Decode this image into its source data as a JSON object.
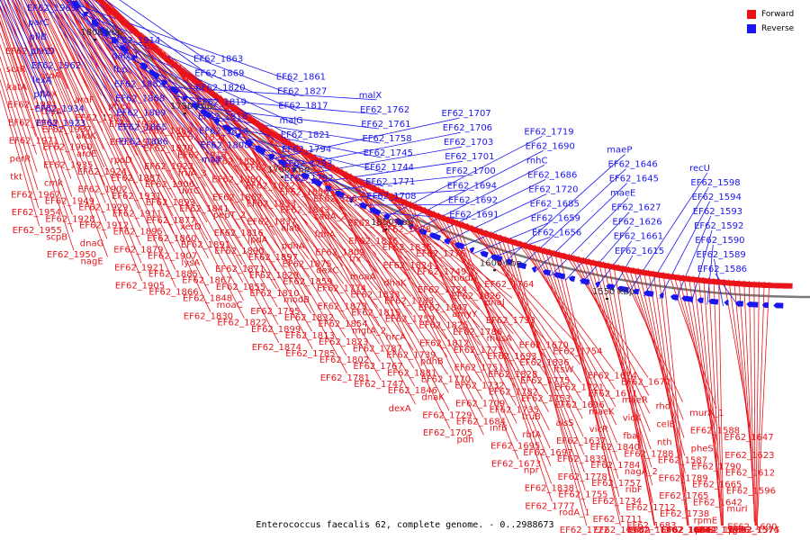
{
  "caption": "Enterococcus faecalis 62, complete genome. - 0..2988673",
  "legend": [
    {
      "label": "Forward",
      "color": "#e8141a"
    },
    {
      "label": "Reverse",
      "color": "#1a16f0"
    }
  ],
  "colors": {
    "forward": "#e8141a",
    "reverse": "#1a16f0",
    "backbone": "#7a7a7a"
  },
  "ticks": [
    "1950 kbp",
    "1900 kbp",
    "1850 kbp",
    "1800 kbp",
    "1750 kbp",
    "1700 kbp",
    "1650 kbp",
    "1600 kbp",
    "1550 kbp"
  ],
  "reverse_labels": [
    "EF62_1969",
    "parC",
    "pflB",
    "phnD",
    "EF62_1962",
    "lexA",
    "pflA",
    "EF62_1934",
    "EF62_1923",
    "EF62_1914",
    "gap_1",
    "fbp",
    "EF62_1882",
    "EF62_1868",
    "EF62_1889",
    "EF62_1865",
    "EF62_1886",
    "EF62_1863",
    "EF62_1869",
    "EF62_1820",
    "EF62_1819",
    "EF62_1818",
    "EF62_1814",
    "EF62_1808",
    "malF",
    "EF62_1861",
    "EF62_1827",
    "EF62_1817",
    "malG",
    "EF62_1821",
    "EF62_1794",
    "EF62_1793",
    "EF62_1792",
    "malX",
    "EF62_1762",
    "EF62_1761",
    "EF62_1758",
    "EF62_1745",
    "EF62_1744",
    "EF62_1771",
    "EF62_1708",
    "EF62_1707",
    "EF62_1706",
    "EF62_1703",
    "EF62_1701",
    "EF62_1700",
    "EF62_1694",
    "EF62_1692",
    "EF62_1691",
    "EF62_1719",
    "EF62_1690",
    "rnhC",
    "EF62_1686",
    "EF62_1720",
    "EF62_1685",
    "EF62_1659",
    "EF62_1656",
    "maeP",
    "EF62_1646",
    "EF62_1645",
    "maeE",
    "EF62_1627",
    "EF62_1626",
    "EF62_1661",
    "EF62_1615",
    "recU",
    "EF62_1598",
    "EF62_1594",
    "EF62_1593",
    "EF62_1592",
    "EF62_1590",
    "EF62_1589",
    "EF62_1586"
  ],
  "forward_labels": [
    "EF62_1979",
    "scrR",
    "katA",
    "EF62_1981",
    "EF62_1968",
    "EF62_1971",
    "perR",
    "tkt",
    "EF62_1967",
    "EF62_1954",
    "EF62_1955",
    "aroA",
    "nox",
    "thyA",
    "EF62_1937",
    "EF62_1960",
    "EF62_1935",
    "cmk",
    "EF62_1949",
    "EF62_1928",
    "scpB",
    "EF62_1950",
    "aroF",
    "EF62_1903",
    "aroK",
    "aroE",
    "EF62_1924",
    "EF62_1902",
    "EF62_1929",
    "EF62_1912",
    "dnaG",
    "nagE",
    "pheA",
    "EF62_1930",
    "EF62_1910",
    "rpoD",
    "EF62_1887",
    "EF62_1931",
    "EF62_1911",
    "EF62_1895",
    "EF62_1879",
    "EF62_1921",
    "EF62_1905",
    "EF62_1888",
    "EF62_1870",
    "EF62_1922",
    "EF62_1906",
    "EF62_1893",
    "EF62_1877",
    "EF62_1860",
    "EF62_1907",
    "EF62_1885",
    "EF62_1866",
    "EF62_1851",
    "EF62_1913",
    "fruA_3",
    "uvrC",
    "EF62_1841",
    "xerD",
    "EF62_1891",
    "lysA",
    "EF62_1867",
    "EF62_1848",
    "EF62_1830",
    "EF62_1896",
    "EF62_1880",
    "EF62_1862",
    "pepT_2",
    "EF62_1816",
    "EF62_1890",
    "EF62_1871",
    "EF62_1855",
    "moaC",
    "EF62_1822",
    "EF62_1892",
    "EF62_1872",
    "EF62_1853",
    "EF62_1837",
    "lpdA",
    "EF62_1897",
    "EF62_1829",
    "EF62_1810",
    "EF62_1795",
    "EF62_1899",
    "EF62_1874",
    "EF62_1858",
    "EF62_1843",
    "alaS",
    "pdhA",
    "EF62_1875",
    "EF62_1859",
    "modB",
    "EF62_1832",
    "EF62_1813",
    "EF62_1785",
    "EF62_1864",
    "cadA_2",
    "fdhA",
    "EF62_1809",
    "dexC",
    "EF62_1774",
    "EF62_1873",
    "EF62_1854",
    "EF62_1823",
    "EF62_1802",
    "EF62_1781",
    "EF62_1763",
    "EF62_1876",
    "trx",
    "moaA",
    "EF62_1833",
    "EF62_1815",
    "mgtA_2",
    "EF62_1787",
    "EF62_1767",
    "EF62_1747",
    "EF62_1878",
    "EF62_1835",
    "EF62_1824",
    "dhaK",
    "EF62_1783",
    "EF62_1759",
    "hrcA",
    "EF62_1739",
    "EF62_1881",
    "EF62_1846",
    "dexA",
    "EF62_1776",
    "EF62_1749",
    "EF62_1724",
    "EF62_1847",
    "EF62_1825",
    "EF62_1812",
    "pdhB",
    "EF62_1770",
    "dnaK",
    "EF62_1729",
    "EF62_1705",
    "modA",
    "EF62_1826",
    "amyY",
    "EF62_1786",
    "EF62_1773",
    "EF62_1751",
    "EF62_1732",
    "EF62_1709",
    "EF62_1684",
    "pdh",
    "EF62_1764",
    "dnaJ",
    "EF62_1733",
    "musA",
    "EF62_1693",
    "EF62_1828",
    "EF62_1782",
    "EF62_1735",
    "infB",
    "EF62_1695",
    "EF62_1673",
    "EF62_1670",
    "EF62_1836",
    "EF62_1775",
    "EF62_1753",
    "truB",
    "rbfA",
    "EF62_1697",
    "npr",
    "EF62_1838",
    "EF62_1777",
    "EF62_1754",
    "ftsW",
    "EF62_1721",
    "EF62_1696",
    "alsS",
    "EF62_1637",
    "EF62_1839",
    "EF62_1778",
    "EF62_1755",
    "rodA_1",
    "EF62_1722",
    "EF62_1674",
    "EF62_1671",
    "maeK",
    "vicR",
    "EF62_1840",
    "EF62_1784",
    "EF62_1757",
    "EF62_1734",
    "EF62_1711",
    "EF62_1698",
    "EF62_1672",
    "maeR",
    "vicK",
    "fba",
    "EF62_1788",
    "nagA_2",
    "ribF",
    "EF62_1712",
    "EF62_1683",
    "budA",
    "EF62_1640",
    "rho",
    "celB",
    "nth",
    "EF62_1587",
    "EF62_1789",
    "EF62_1765",
    "EF62_1738",
    "EF62_1687",
    "EF62_1664",
    "EF62_1641",
    "murA_1",
    "EF62_1588",
    "pheS",
    "EF62_1790",
    "EF62_1665",
    "EF62_1642",
    "rpmE",
    "EF62_1595",
    "pheT",
    "trxB",
    "EF62_1668",
    "EF62_1647",
    "EF62_1623",
    "EF62_1612",
    "EF62_1596",
    "murI",
    "EF62_1600",
    "pyrG",
    "rph",
    "EF62_1574",
    "EF62_1575"
  ]
}
